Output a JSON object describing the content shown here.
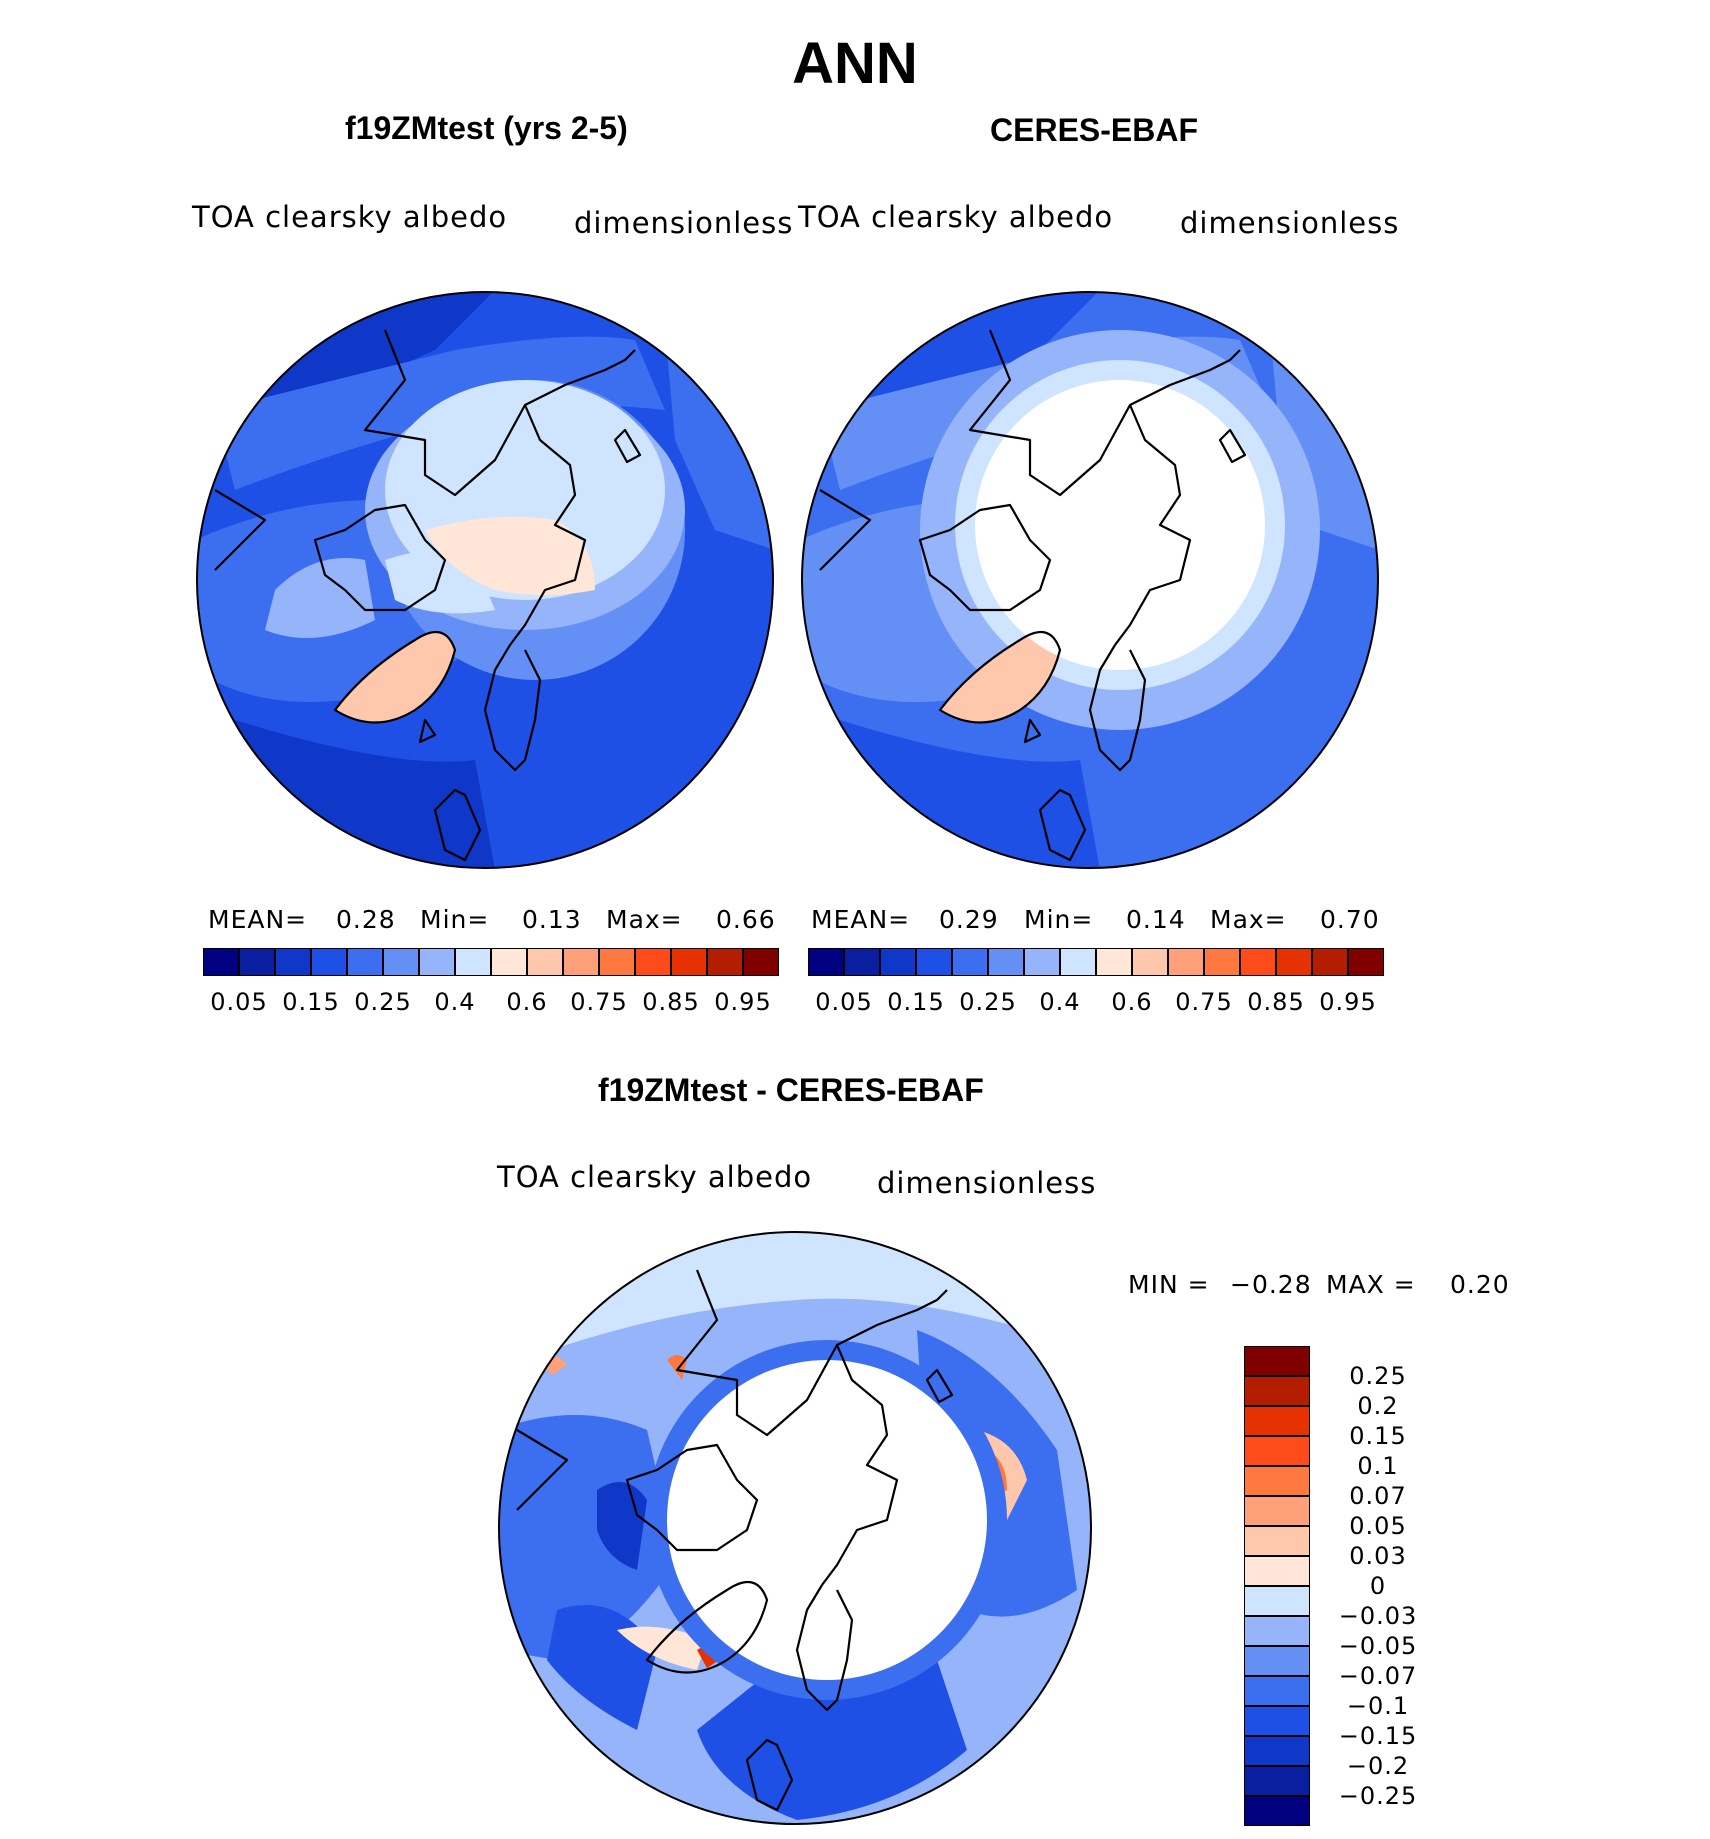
{
  "page_title": "ANN",
  "panels": [
    {
      "title": "f19ZMtest (yrs 2-5)",
      "variable": "TOA clearsky albedo",
      "units": "dimensionless",
      "stats": {
        "mean_label": "MEAN=",
        "mean": "0.28",
        "min_label": "Min=",
        "min": "0.13",
        "max_label": "Max=",
        "max": "0.66"
      }
    },
    {
      "title": "CERES-EBAF",
      "variable": "TOA clearsky albedo",
      "units": "dimensionless",
      "stats": {
        "mean_label": "MEAN=",
        "mean": "0.29",
        "min_label": "Min=",
        "min": "0.14",
        "max_label": "Max=",
        "max": "0.70"
      }
    }
  ],
  "colorbar_main": {
    "labels": [
      "0.05",
      "0.15",
      "0.25",
      "0.4",
      "0.6",
      "0.75",
      "0.85",
      "0.95"
    ],
    "colors": [
      "#000080",
      "#0a1ea0",
      "#0f37c8",
      "#1e50e6",
      "#3c6ef0",
      "#6490f5",
      "#96b4fa",
      "#cfe4ff",
      "#ffe6d7",
      "#ffc8ad",
      "#ffa07a",
      "#ff7840",
      "#ff4b19",
      "#e63200",
      "#b41e00",
      "#800000"
    ]
  },
  "diff_panel": {
    "title": "f19ZMtest - CERES-EBAF",
    "variable": "TOA clearsky albedo",
    "units": "dimensionless",
    "stats": {
      "min_label": "MIN =",
      "min": "−0.28",
      "max_label": "MAX =",
      "max": "0.20"
    }
  },
  "colorbar_diff": {
    "labels": [
      "0.25",
      "0.2",
      "0.15",
      "0.1",
      "0.07",
      "0.05",
      "0.03",
      "0",
      "−0.03",
      "−0.05",
      "−0.07",
      "−0.1",
      "−0.15",
      "−0.2",
      "−0.25"
    ],
    "colors": [
      "#800000",
      "#b41e00",
      "#e63200",
      "#ff4b19",
      "#ff7840",
      "#ffa07a",
      "#ffc8ad",
      "#ffe6d7",
      "#cfe4ff",
      "#96b4fa",
      "#6490f5",
      "#3c6ef0",
      "#1e50e6",
      "#0f37c8",
      "#0a1ea0",
      "#000080"
    ]
  }
}
